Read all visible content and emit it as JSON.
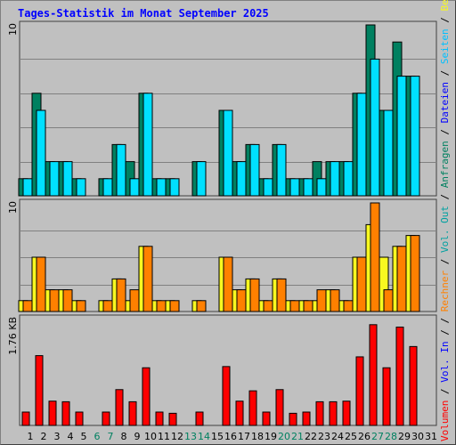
{
  "title": "Tages-Statistik im Monat September 2025",
  "colors": {
    "anfragen": "#008060",
    "dateien": "#00e0ff",
    "seiten": "#00c0ff",
    "besuche": "#f8f820",
    "rechner": "#ff8000",
    "vol_in": "#0000ff",
    "vol_out": "#00a0a0",
    "volumen": "#ff0000",
    "weekend_day": "#008060",
    "weekday": "#000000",
    "background": "#c0c0c0"
  },
  "chart_data": [
    {
      "type": "bar",
      "name": "hits",
      "ymax_label": "10",
      "ylim": [
        0,
        10
      ],
      "categories": [
        "1",
        "2",
        "3",
        "4",
        "5",
        "6",
        "7",
        "8",
        "9",
        "10",
        "11",
        "12",
        "13",
        "14",
        "15",
        "16",
        "17",
        "18",
        "19",
        "20",
        "21",
        "22",
        "23",
        "24",
        "25",
        "26",
        "27",
        "28",
        "29",
        "30",
        "31"
      ],
      "series": [
        {
          "name": "Anfragen",
          "color_key": "anfragen",
          "values": [
            1,
            6,
            2,
            2,
            1,
            0,
            1,
            3,
            2,
            6,
            1,
            1,
            0,
            2,
            0,
            5,
            2,
            3,
            1,
            3,
            1,
            1,
            2,
            2,
            2,
            6,
            10,
            5,
            9,
            7,
            0
          ]
        },
        {
          "name": "Dateien",
          "color_key": "dateien",
          "values": [
            1,
            5,
            2,
            2,
            1,
            0,
            1,
            3,
            1,
            6,
            1,
            1,
            0,
            2,
            0,
            5,
            2,
            3,
            1,
            3,
            1,
            1,
            1,
            2,
            2,
            6,
            8,
            5,
            7,
            7,
            0
          ]
        }
      ],
      "legend": [
        {
          "text": "Anfragen",
          "color_key": "anfragen"
        },
        {
          "text": " / ",
          "color_key": "weekday"
        },
        {
          "text": "Dateien",
          "color_key": "vol_in"
        },
        {
          "text": " / ",
          "color_key": "weekday"
        },
        {
          "text": "Seiten",
          "color_key": "seiten"
        },
        {
          "text": " / ",
          "color_key": "weekday"
        },
        {
          "text": "Besuche",
          "color_key": "besuche"
        }
      ]
    },
    {
      "type": "bar",
      "name": "visits",
      "ymax_label": "10",
      "ylim": [
        0,
        10
      ],
      "series": [
        {
          "name": "Besuche",
          "color_key": "besuche",
          "values": [
            1,
            5,
            2,
            2,
            1,
            0,
            1,
            3,
            1,
            6,
            1,
            1,
            0,
            1,
            0,
            5,
            2,
            3,
            1,
            3,
            1,
            1,
            1,
            2,
            1,
            5,
            8,
            5,
            6,
            7,
            0
          ]
        },
        {
          "name": "Rechner",
          "color_key": "rechner",
          "values": [
            1,
            5,
            2,
            2,
            1,
            0,
            1,
            3,
            2,
            6,
            1,
            1,
            0,
            1,
            0,
            5,
            2,
            3,
            1,
            3,
            1,
            1,
            2,
            2,
            1,
            5,
            10,
            2,
            6,
            7,
            0
          ]
        }
      ],
      "legend": [
        {
          "text": " / ",
          "color_key": "weekday"
        },
        {
          "text": "Rechner",
          "color_key": "rechner"
        },
        {
          "text": " / ",
          "color_key": "weekday"
        },
        {
          "text": "Vol. Out",
          "color_key": "vol_out"
        },
        {
          "text": " / ",
          "color_key": "weekday"
        }
      ]
    },
    {
      "type": "bar",
      "name": "volume",
      "ymax_label": "1.76 KB",
      "ylim": [
        0,
        1.76
      ],
      "unit": "KB",
      "series": [
        {
          "name": "Volumen",
          "color_key": "volumen",
          "values": [
            0.22,
            1.15,
            0.4,
            0.39,
            0.22,
            0,
            0.22,
            0.59,
            0.39,
            0.95,
            0.22,
            0.2,
            0,
            0.22,
            0,
            0.97,
            0.4,
            0.57,
            0.22,
            0.59,
            0.2,
            0.22,
            0.39,
            0.39,
            0.4,
            1.13,
            1.66,
            0.95,
            1.62,
            1.3,
            0
          ]
        }
      ],
      "legend": [
        {
          "text": "Volumen",
          "color_key": "volumen"
        },
        {
          "text": " / ",
          "color_key": "weekday"
        },
        {
          "text": "Vol. In",
          "color_key": "vol_in"
        },
        {
          "text": " / ",
          "color_key": "weekday"
        }
      ]
    }
  ],
  "x_axis": {
    "weekend_days": [
      "6",
      "7",
      "13",
      "14",
      "20",
      "21",
      "27",
      "28"
    ]
  }
}
